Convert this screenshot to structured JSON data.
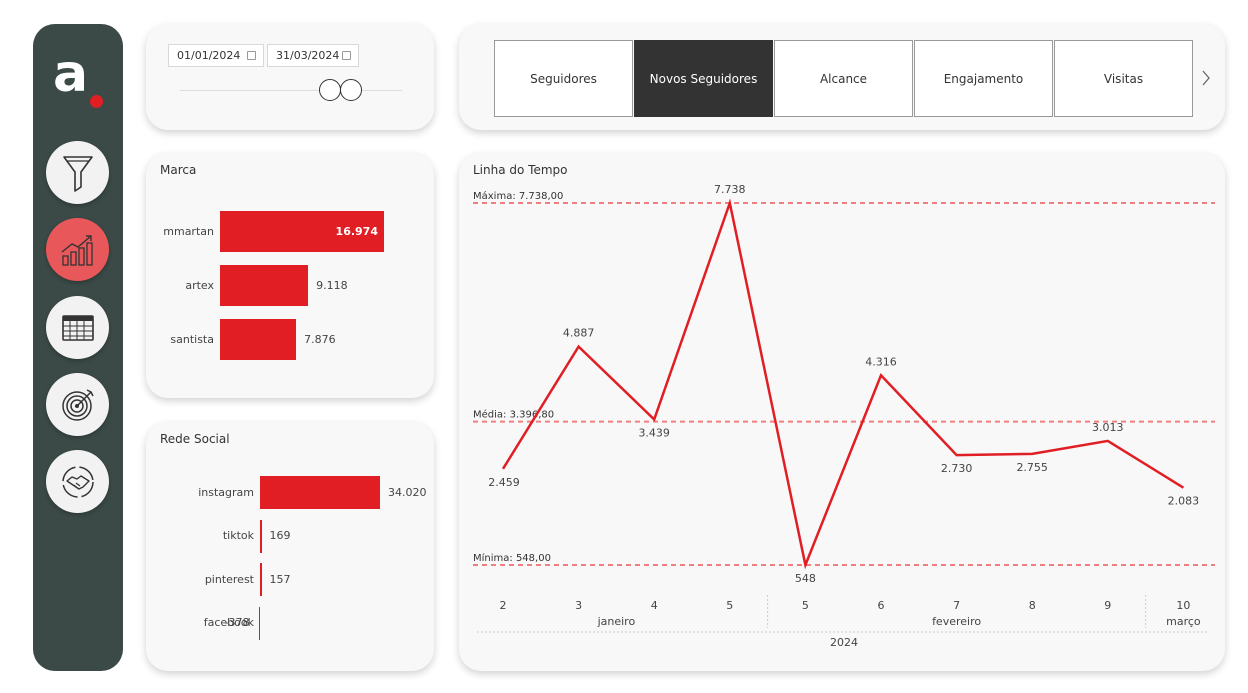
{
  "brand": {
    "logo_letter": "a",
    "accent_color": "#e01e24",
    "sidebar_color": "#3b4a47"
  },
  "nav": [
    {
      "icon": "filter-icon",
      "active": false
    },
    {
      "icon": "growth-chart-icon",
      "active": true
    },
    {
      "icon": "table-icon",
      "active": false
    },
    {
      "icon": "target-icon",
      "active": false
    },
    {
      "icon": "handshake-icon",
      "active": false
    }
  ],
  "date_filter": {
    "start": "01/01/2024",
    "end": "31/03/2024"
  },
  "tabs": [
    {
      "label": "Seguidores",
      "active": false
    },
    {
      "label": "Novos Seguidores",
      "active": true
    },
    {
      "label": "Alcance",
      "active": false
    },
    {
      "label": "Engajamento",
      "active": false
    },
    {
      "label": "Visitas",
      "active": false
    }
  ],
  "marca": {
    "title": "Marca",
    "items": [
      {
        "label": "mmartan",
        "value": 16974,
        "display": "16.974"
      },
      {
        "label": "artex",
        "value": 9118,
        "display": "9.118"
      },
      {
        "label": "santista",
        "value": 7876,
        "display": "7.876"
      }
    ]
  },
  "rede_social": {
    "title": "Rede Social",
    "items": [
      {
        "label": "instagram",
        "value": 34020,
        "display": "34.020"
      },
      {
        "label": "tiktok",
        "value": 169,
        "display": "169"
      },
      {
        "label": "pinterest",
        "value": 157,
        "display": "157"
      },
      {
        "label": "facebook",
        "value": -378,
        "display": "-378"
      }
    ]
  },
  "chart_data": {
    "type": "line",
    "title": "Linha do Tempo",
    "x": [
      "2",
      "3",
      "4",
      "5",
      "5",
      "6",
      "7",
      "8",
      "9",
      "10"
    ],
    "months": [
      {
        "label": "janeiro",
        "span": [
          0,
          3
        ]
      },
      {
        "label": "fevereiro",
        "span": [
          4,
          8
        ]
      },
      {
        "label": "março",
        "span": [
          9,
          9
        ]
      }
    ],
    "year": "2024",
    "series": [
      {
        "values": [
          2459,
          4887,
          3439,
          7738,
          548,
          4316,
          2730,
          2755,
          3013,
          2083
        ],
        "labels": [
          "2.459",
          "4.887",
          "3.439",
          "7.738",
          "548",
          "4.316",
          "2.730",
          "2.755",
          "3.013",
          "2.083"
        ],
        "color": "#e01e24"
      }
    ],
    "ylim": [
      548,
      7738
    ],
    "reference_lines": [
      {
        "label": "Máxima: 7.738,00",
        "value": 7738
      },
      {
        "label": "Média: 3.396,80",
        "value": 3396.8
      },
      {
        "label": "Mínima: 548,00",
        "value": 548
      }
    ],
    "reference_color": "#f08080"
  }
}
